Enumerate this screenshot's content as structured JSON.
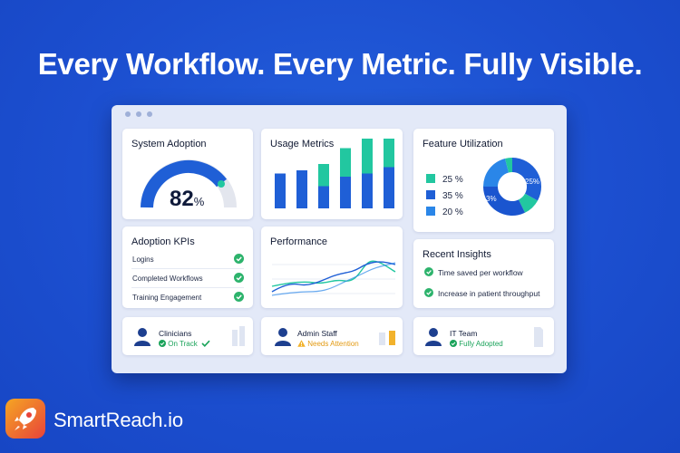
{
  "headline": "Every Workflow. Every Metric. Fully Visible.",
  "colors": {
    "background": "#1c4fd0",
    "primary_blue": "#1f5fd6",
    "teal": "#22c7a0",
    "green_check": "#2db36c",
    "amber": "#f2b22c"
  },
  "system_adoption": {
    "title": "System Adoption",
    "value": "82",
    "unit": "%",
    "level": 0.82
  },
  "usage_metrics": {
    "title": "Usage Metrics",
    "bars": [
      {
        "blue": 0.55,
        "teal": 0
      },
      {
        "blue": 0.6,
        "teal": 0
      },
      {
        "blue": 0.35,
        "teal": 0.35
      },
      {
        "blue": 0.5,
        "teal": 0.45
      },
      {
        "blue": 0.55,
        "teal": 0.55
      },
      {
        "blue": 0.65,
        "teal": 0.45
      }
    ]
  },
  "feature_utilization": {
    "title": "Feature Utilization",
    "legend": [
      {
        "label": "25 %",
        "color": "#22c7a0",
        "icon": "teal-swatch"
      },
      {
        "label": "35 %",
        "color": "#1f5fd6",
        "icon": "blue-swatch"
      },
      {
        "label": "20 %",
        "color": "#2a86e8",
        "icon": "light-blue-swatch"
      }
    ],
    "donut_labels": {
      "left": "3%",
      "right": "25%"
    }
  },
  "adoption_kpis": {
    "title": "Adoption KPIs",
    "items": [
      "Logins",
      "Completed Workflows",
      "Training Engagement"
    ]
  },
  "performance": {
    "title": "Performance"
  },
  "recent_insights": {
    "title": "Recent Insights",
    "items": [
      "Time saved per workflow",
      "Increase in patient throughput"
    ]
  },
  "roles": [
    {
      "name": "Clinicians",
      "status": "On Track",
      "status_color": "#1aa35a",
      "icon": "check-circle-icon"
    },
    {
      "name": "Admin Staff",
      "status": "Needs Attention",
      "status_color": "#e39a12",
      "icon": "warning-icon"
    },
    {
      "name": "IT Team",
      "status": "Fully Adopted",
      "status_color": "#1aa35a",
      "icon": "check-circle-icon"
    }
  ],
  "brand": {
    "name": "SmartReach.io",
    "icon": "rocket-logo-icon"
  }
}
